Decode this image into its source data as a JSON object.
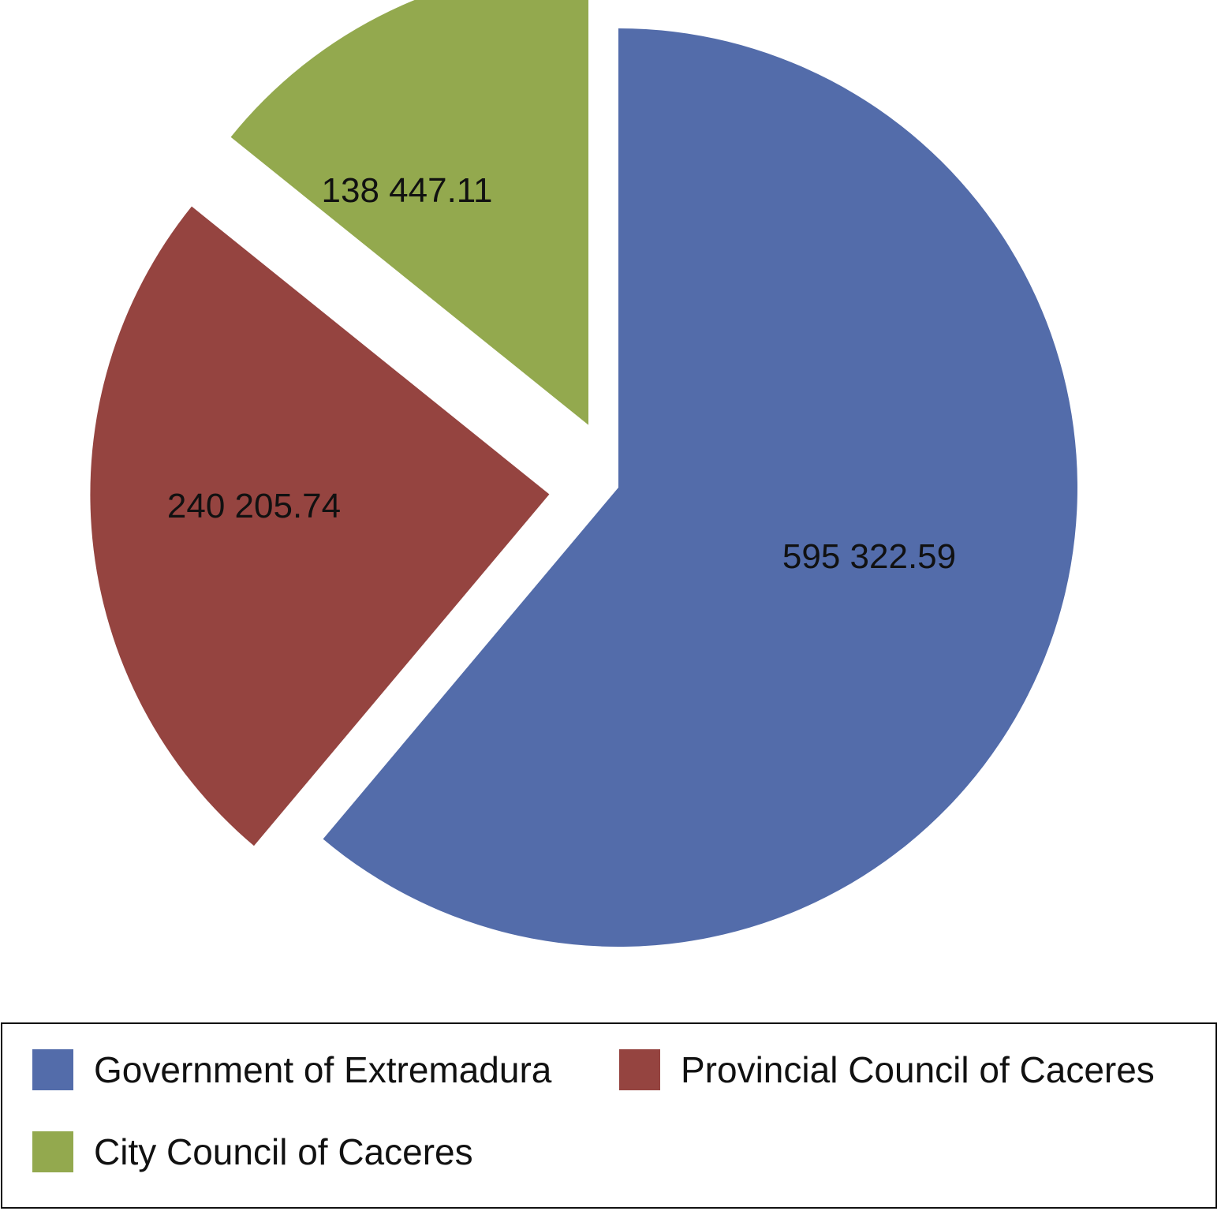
{
  "chart_data": {
    "type": "pie",
    "slices": [
      {
        "name": "Government of Extremadura",
        "value": 595322.59,
        "label": "595 322.59",
        "color": "#536CAA"
      },
      {
        "name": "Provincial Council of Caceres",
        "value": 240205.74,
        "label": "240 205.74",
        "color": "#954440"
      },
      {
        "name": "City Council of Caceres",
        "value": 138447.11,
        "label": "138 447.11",
        "color": "#93A94E"
      }
    ],
    "title": "",
    "exploded": true,
    "legend_position": "bottom"
  }
}
